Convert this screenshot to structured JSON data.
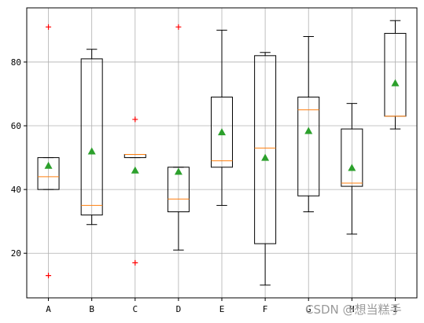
{
  "colors": {
    "axes": "#000000",
    "grid": "#b0b0b0",
    "box": "#000000",
    "median": "#ff7f0e",
    "mean": "#2ca02c",
    "flier": "#ff0000",
    "background": "#ffffff"
  },
  "watermark": "CSDN @想当糕手",
  "chart_data": {
    "type": "box",
    "title": "",
    "xlabel": "",
    "ylabel": "",
    "ylim": [
      6,
      97
    ],
    "grid": true,
    "yticks": [
      20,
      40,
      60,
      80
    ],
    "categories": [
      "A",
      "B",
      "C",
      "D",
      "E",
      "F",
      "G",
      "H",
      "I"
    ],
    "boxes": [
      {
        "label": "A",
        "whislo": 40,
        "q1": 40,
        "med": 44,
        "q3": 50,
        "whishi": 50,
        "mean": 47.5,
        "fliers": [
          91,
          13
        ]
      },
      {
        "label": "B",
        "whislo": 29,
        "q1": 32,
        "med": 35,
        "q3": 81,
        "whishi": 84,
        "mean": 52,
        "fliers": []
      },
      {
        "label": "C",
        "whislo": 50,
        "q1": 50,
        "med": 51,
        "q3": 51,
        "whishi": 51,
        "mean": 46,
        "fliers": [
          62,
          17
        ]
      },
      {
        "label": "D",
        "whislo": 21,
        "q1": 33,
        "med": 37,
        "q3": 47,
        "whishi": 47,
        "mean": 45.6,
        "fliers": [
          91
        ]
      },
      {
        "label": "E",
        "whislo": 35,
        "q1": 47,
        "med": 49,
        "q3": 69,
        "whishi": 90,
        "mean": 58,
        "fliers": []
      },
      {
        "label": "F",
        "whislo": 10,
        "q1": 23,
        "med": 53,
        "q3": 82,
        "whishi": 83,
        "mean": 50,
        "fliers": []
      },
      {
        "label": "G",
        "whislo": 33,
        "q1": 38,
        "med": 65,
        "q3": 69,
        "whishi": 88,
        "mean": 58.4,
        "fliers": []
      },
      {
        "label": "H",
        "whislo": 26,
        "q1": 41,
        "med": 42,
        "q3": 59,
        "whishi": 67,
        "mean": 46.8,
        "fliers": []
      },
      {
        "label": "I",
        "whislo": 59,
        "q1": 63,
        "med": 63,
        "q3": 89,
        "whishi": 93,
        "mean": 73.4,
        "fliers": []
      }
    ]
  }
}
